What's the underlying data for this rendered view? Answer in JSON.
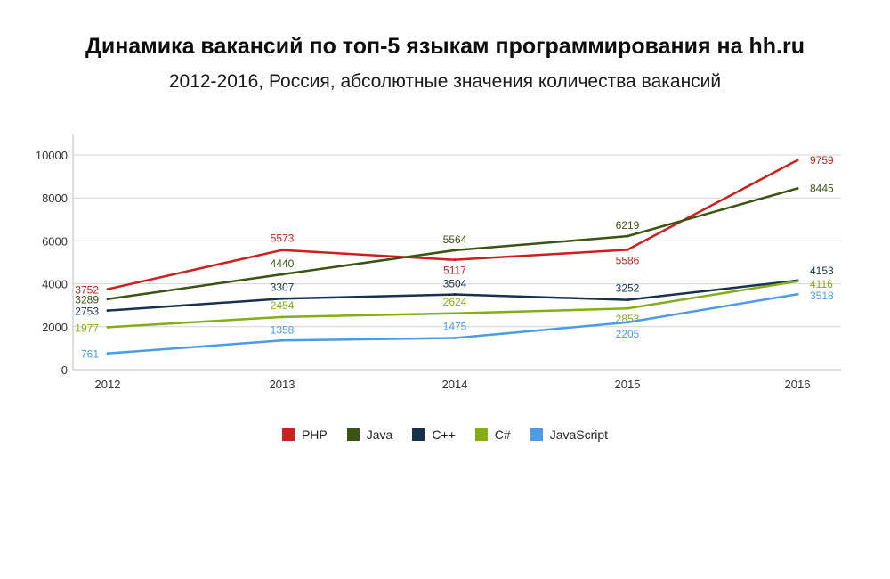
{
  "title": "Динамика вакансий по топ-5 языкам программирования на hh.ru",
  "subtitle": "2012-2016, Россия, абсолютные значения количества вакансий",
  "chart_data": {
    "type": "line",
    "x": [
      "2012",
      "2013",
      "2014",
      "2015",
      "2016"
    ],
    "ylim": [
      0,
      10000
    ],
    "yticks": [
      0,
      2000,
      4000,
      6000,
      8000,
      10000
    ],
    "grid": true,
    "legend_position": "bottom",
    "series": [
      {
        "name": "PHP",
        "color": "#cc1f1f",
        "values": [
          3752,
          5573,
          5117,
          5586,
          9759
        ],
        "label_values": [
          3752,
          5573,
          5117,
          5586,
          9759
        ]
      },
      {
        "name": "Java",
        "color": "#3b5313",
        "values": [
          3289,
          4440,
          5564,
          6219,
          8445
        ],
        "label_values": [
          3289,
          4440,
          5564,
          6219,
          8445
        ]
      },
      {
        "name": "C++",
        "color": "#17324f",
        "values": [
          2753,
          3307,
          3504,
          3252,
          4153
        ],
        "label_values": [
          2753,
          3307,
          3504,
          3252,
          4153
        ]
      },
      {
        "name": "C#",
        "color": "#84ad16",
        "values": [
          1977,
          2454,
          2624,
          2853,
          4116
        ],
        "label_values": [
          1977,
          2454,
          2624,
          2853,
          4116
        ]
      },
      {
        "name": "JavaScript",
        "color": "#4c9be6",
        "values": [
          761,
          1358,
          1475,
          2205,
          3518
        ],
        "label_values": [
          761,
          1358,
          1475,
          2205,
          3518
        ]
      }
    ]
  }
}
